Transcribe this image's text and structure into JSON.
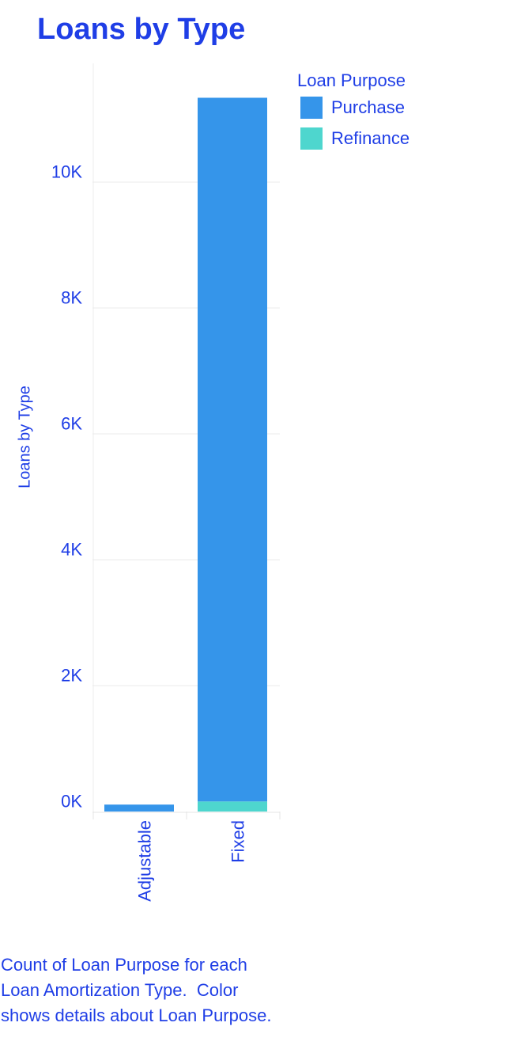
{
  "chart_data": {
    "type": "bar",
    "stacked": true,
    "title": "Loans by Type",
    "ylabel": "Loans by Type",
    "xlabel": "",
    "categories": [
      "Adjustable",
      "Fixed"
    ],
    "series": [
      {
        "name": "Refinance",
        "color": "#4ed6ce",
        "values": [
          0,
          160
        ]
      },
      {
        "name": "Purchase",
        "color": "#3595ea",
        "values": [
          110,
          11180
        ]
      }
    ],
    "ylim": [
      0,
      12000
    ],
    "yticks": [
      0,
      2000,
      4000,
      6000,
      8000,
      10000
    ],
    "ytick_labels": [
      "0K",
      "2K",
      "4K",
      "6K",
      "8K",
      "10K"
    ],
    "grid": true,
    "legend_title": "Loan Purpose",
    "legend_position": "top-right",
    "legend": [
      {
        "label": "Purchase",
        "color": "#3595ea"
      },
      {
        "label": "Refinance",
        "color": "#4ed6ce"
      }
    ]
  },
  "caption": "Count of Loan Purpose for each Loan Amortization Type.  Color shows details about Loan Purpose."
}
